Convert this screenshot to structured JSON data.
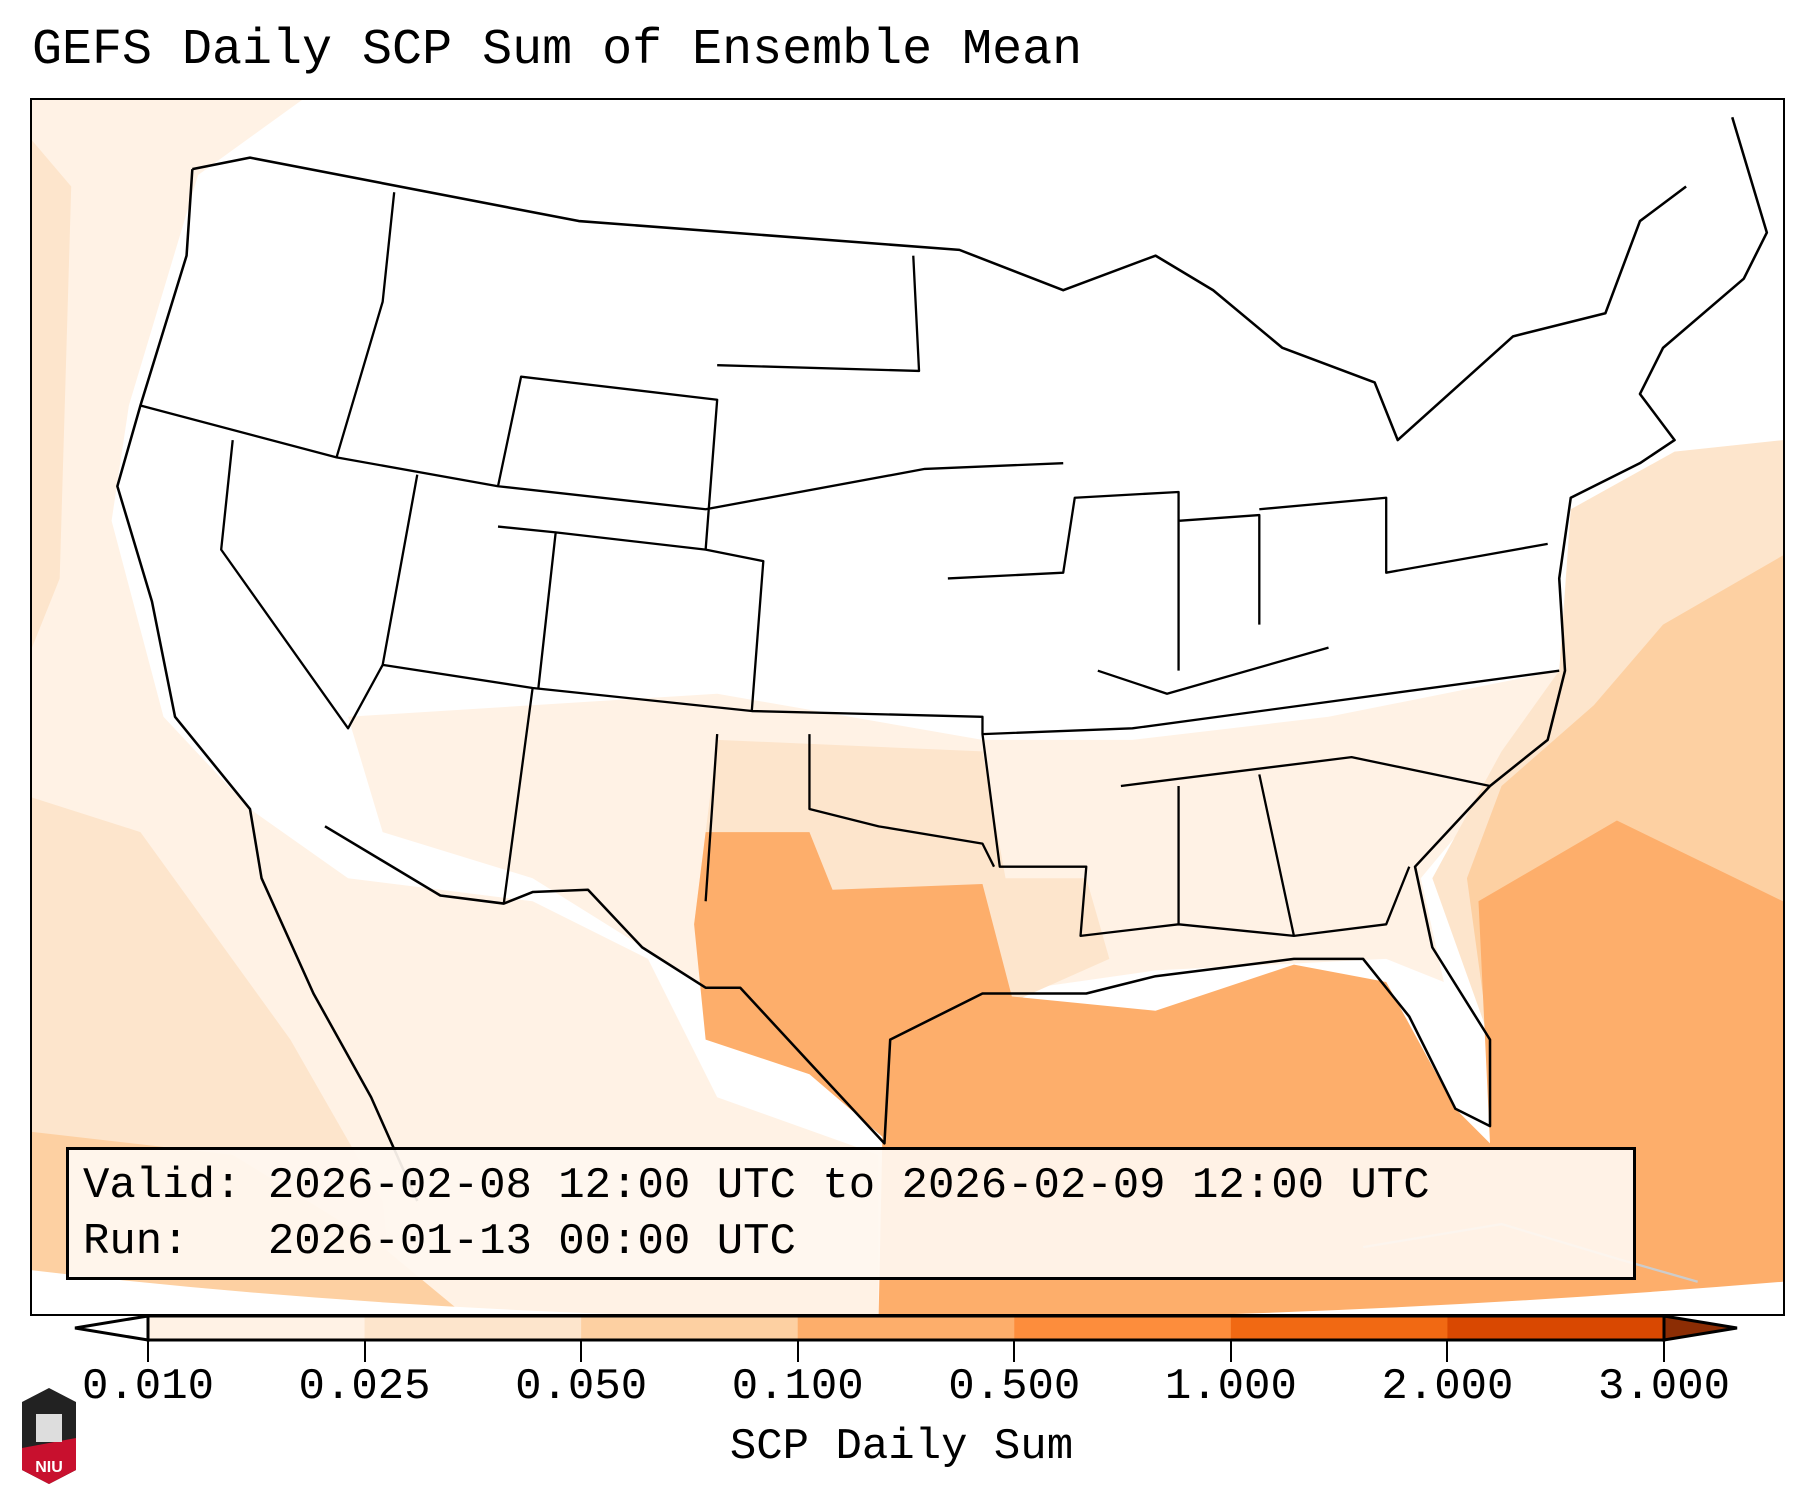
{
  "title": "GEFS Daily SCP Sum of Ensemble Mean",
  "infobox": {
    "valid_line": "Valid: 2026-02-08 12:00 UTC to 2026-02-09 12:00 UTC",
    "run_line": "Run:   2026-01-13 00:00 UTC"
  },
  "colorbar": {
    "label": "SCP Daily Sum",
    "ticks": [
      "0.010",
      "0.025",
      "0.050",
      "0.100",
      "0.500",
      "1.000",
      "2.000",
      "3.000"
    ],
    "colors": [
      "#fff2e5",
      "#fde5cc",
      "#fdd0a2",
      "#fdae6b",
      "#fd8d3c",
      "#f16913",
      "#d94801"
    ],
    "under_color": "#ffffff",
    "over_color": "#8c2d04"
  },
  "logo": {
    "text": "NIU"
  }
}
